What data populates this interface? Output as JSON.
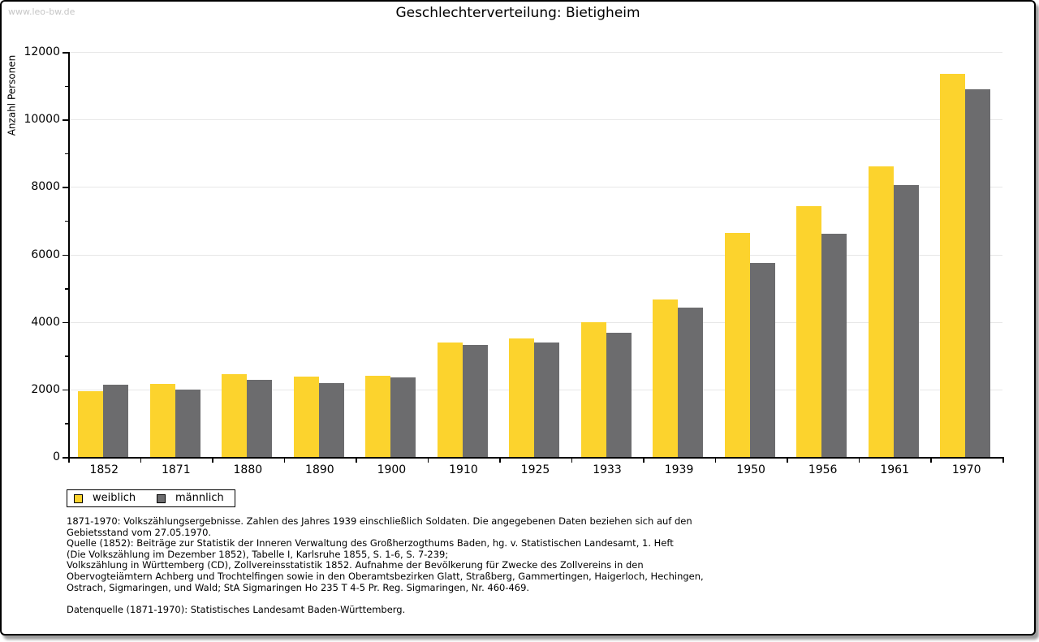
{
  "watermark": "www.leo-bw.de",
  "title": "Geschlechterverteilung: Bietigheim",
  "chart_data": {
    "type": "bar",
    "title": "Geschlechterverteilung: Bietigheim",
    "xlabel": "",
    "ylabel": "Anzahl Personen",
    "categories": [
      "1852",
      "1871",
      "1880",
      "1890",
      "1900",
      "1910",
      "1925",
      "1933",
      "1939",
      "1950",
      "1956",
      "1961",
      "1970"
    ],
    "series": [
      {
        "name": "weiblich",
        "color": "#fcd32d",
        "values": [
          1950,
          2160,
          2460,
          2390,
          2410,
          3380,
          3500,
          4000,
          4670,
          6630,
          7430,
          8600,
          11350
        ]
      },
      {
        "name": "männlich",
        "color": "#6c6c6e",
        "values": [
          2130,
          2000,
          2290,
          2200,
          2360,
          3320,
          3380,
          3680,
          4430,
          5750,
          6610,
          8050,
          10900
        ]
      }
    ],
    "ylim": [
      0,
      12000
    ],
    "ytick_step": 2000,
    "yminor_step": 1000,
    "grid": true,
    "legend_position": "bottom-left"
  },
  "legend": {
    "items": [
      {
        "label": "weiblich",
        "color": "#fcd32d"
      },
      {
        "label": "männlich",
        "color": "#6c6c6e"
      }
    ]
  },
  "footnotes": {
    "source_block": "1871-1970: Volkszählungsergebnisse. Zahlen des Jahres 1939 einschließlich Soldaten. Die angegebenen Daten beziehen sich auf den\nGebietsstand vom 27.05.1970.\nQuelle (1852): Beiträge zur Statistik der Inneren Verwaltung des Großherzogthums Baden, hg. v. Statistischen Landesamt, 1. Heft\n(Die Volkszählung im Dezember 1852), Tabelle I, Karlsruhe 1855, S. 1-6, S. 7-239;\nVolkszählung in Württemberg (CD), Zollvereinsstatistik 1852. Aufnahme der Bevölkerung für Zwecke des Zollvereins in den\nObervogteiämtern Achberg und Trochtelfingen sowie in den Oberamtsbezirken Glatt, Straßberg, Gammertingen, Haigerloch, Hechingen,\nOstrach, Sigmaringen, und Wald; StA Sigmaringen Ho 235 T 4-5 Pr. Reg. Sigmaringen, Nr. 460-469.",
    "data_source": "Datenquelle (1871-1970): Statistisches Landesamt Baden-Württemberg."
  },
  "colors": {
    "female_bar": "#fcd32d",
    "male_bar": "#6c6c6e",
    "gridline": "#e7e7e7",
    "axis": "#000000",
    "watermark": "#c6c6c6",
    "frame_border": "#000000",
    "frame_shadow": "#9c9c9c"
  }
}
